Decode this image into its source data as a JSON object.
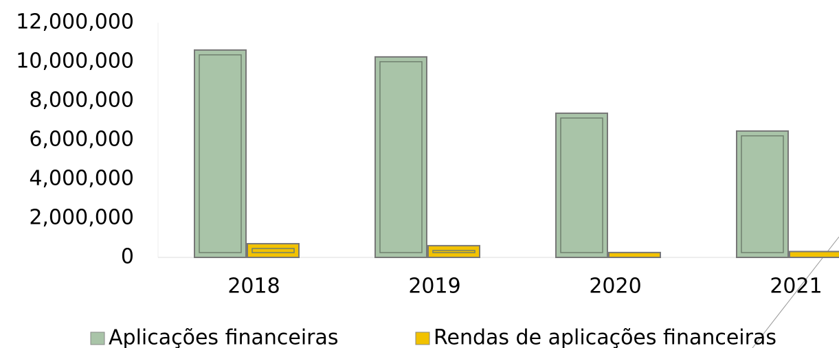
{
  "chart_data": {
    "type": "bar",
    "categories": [
      "2018",
      "2019",
      "2020",
      "2021"
    ],
    "series": [
      {
        "name": "Aplicações financeiras",
        "color": "#a9c4a8",
        "values": [
          10600000,
          10250000,
          7370000,
          6460000
        ]
      },
      {
        "name": "Rendas de aplicações financeiras",
        "color": "#f2c200",
        "values": [
          700000,
          600000,
          250000,
          300000
        ]
      }
    ],
    "ylim": [
      0,
      12000000
    ],
    "yticks": [
      0,
      {
        "value": 2000000,
        "label": "2,000,000"
      },
      {
        "value": 4000000,
        "label": "4,000,000"
      },
      {
        "value": 6000000,
        "label": "6,000,000"
      },
      {
        "value": 8000000,
        "label": "8,000,000"
      },
      {
        "value": 10000000,
        "label": "10,000,000"
      },
      {
        "value": 12000000,
        "label": "12,000,000"
      }
    ]
  }
}
